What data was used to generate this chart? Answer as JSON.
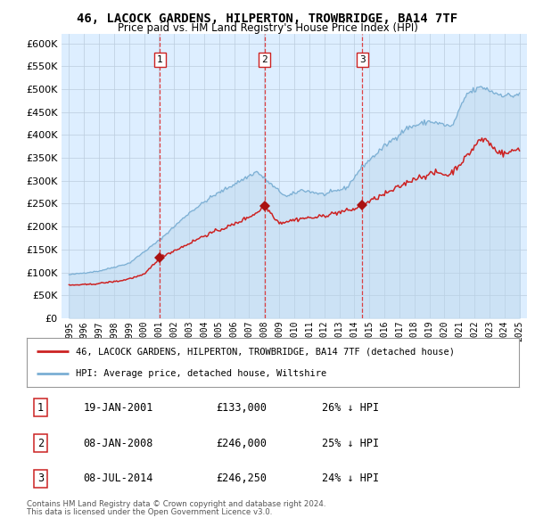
{
  "title": "46, LACOCK GARDENS, HILPERTON, TROWBRIDGE, BA14 7TF",
  "subtitle": "Price paid vs. HM Land Registry's House Price Index (HPI)",
  "legend_line1": "46, LACOCK GARDENS, HILPERTON, TROWBRIDGE, BA14 7TF (detached house)",
  "legend_line2": "HPI: Average price, detached house, Wiltshire",
  "footer1": "Contains HM Land Registry data © Crown copyright and database right 2024.",
  "footer2": "This data is licensed under the Open Government Licence v3.0.",
  "transactions": [
    {
      "num": 1,
      "date": "19-JAN-2001",
      "price": "£133,000",
      "pct": "26% ↓ HPI",
      "x_year": 2001.05,
      "y_val": 133000
    },
    {
      "num": 2,
      "date": "08-JAN-2008",
      "price": "£246,000",
      "pct": "25% ↓ HPI",
      "x_year": 2008.03,
      "y_val": 246000
    },
    {
      "num": 3,
      "date": "08-JUL-2014",
      "price": "£246,250",
      "pct": "24% ↓ HPI",
      "x_year": 2014.52,
      "y_val": 246250
    }
  ],
  "hpi_color": "#7bafd4",
  "hpi_fill_color": "#b8d4ea",
  "price_color": "#cc2222",
  "bg_color": "#ddeeff",
  "grid_color": "#bbccdd",
  "vline_color": "#dd2222",
  "marker_color": "#aa1111",
  "box_color": "#cc2222",
  "ylim_max": 620000,
  "yticks": [
    0,
    50000,
    100000,
    150000,
    200000,
    250000,
    300000,
    350000,
    400000,
    450000,
    500000,
    550000,
    600000
  ],
  "xlim": [
    1994.5,
    2025.5
  ],
  "xlabel_years": [
    1995,
    1996,
    1997,
    1998,
    1999,
    2000,
    2001,
    2002,
    2003,
    2004,
    2005,
    2006,
    2007,
    2008,
    2009,
    2010,
    2011,
    2012,
    2013,
    2014,
    2015,
    2016,
    2017,
    2018,
    2019,
    2020,
    2021,
    2022,
    2023,
    2024,
    2025
  ]
}
